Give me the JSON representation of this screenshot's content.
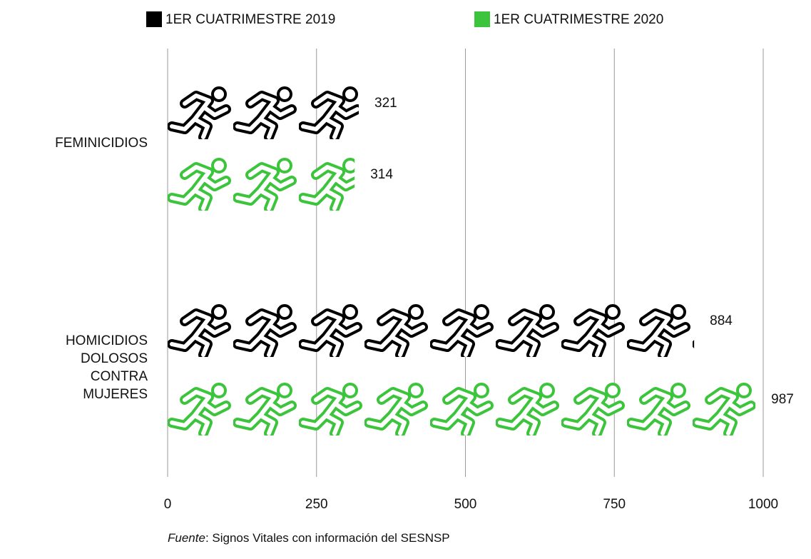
{
  "chart_data": {
    "type": "pictograph_bar",
    "categories": [
      "FEMINICIDIOS",
      "HOMICIDIOS DOLOSOS CONTRA MUJERES"
    ],
    "series": [
      {
        "name": "1ER CUATRIMESTRE 2019",
        "color": "#000000",
        "values": [
          321,
          884
        ]
      },
      {
        "name": "1ER CUATRIMESTRE 2020",
        "color": "#3cc43c",
        "values": [
          314,
          987
        ]
      }
    ],
    "xlim": [
      0,
      1000
    ],
    "xticks": [
      0,
      250,
      500,
      750,
      1000
    ],
    "grid": true,
    "source": {
      "label": "Fuente",
      "text": "Signos Vitales con información del SESNSP"
    }
  }
}
